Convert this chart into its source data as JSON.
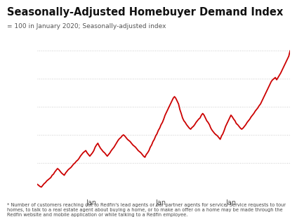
{
  "title": "Seasonally-Adjusted Homebuyer Demand Index",
  "subtitle": "= 100 in January 2020; Seasonally-adjusted index",
  "footnote": "* Number of customers reaching out to Redfin's lead agents or our partner agents for service. Service requests to tour homes, to talk to a real estate agent about buying a home, or to make an offer on a home may be made through the Redfin website and mobile application or while talking to a Redfin employee.",
  "line_color": "#cc0000",
  "background_color": "#ffffff",
  "grid_color": "#cccccc",
  "x_tick_labels": [
    "Jan",
    "Jan",
    "Jan"
  ],
  "values": [
    62,
    60,
    58,
    57,
    60,
    63,
    65,
    68,
    70,
    72,
    74,
    78,
    80,
    84,
    87,
    90,
    88,
    85,
    82,
    80,
    78,
    82,
    85,
    88,
    90,
    92,
    95,
    98,
    100,
    103,
    105,
    108,
    112,
    115,
    118,
    120,
    122,
    118,
    115,
    112,
    115,
    118,
    122,
    128,
    132,
    135,
    130,
    126,
    123,
    120,
    118,
    115,
    112,
    115,
    118,
    122,
    125,
    128,
    132,
    136,
    140,
    143,
    145,
    148,
    150,
    148,
    145,
    142,
    140,
    138,
    135,
    132,
    130,
    128,
    125,
    122,
    120,
    118,
    115,
    112,
    110,
    115,
    118,
    122,
    128,
    132,
    138,
    142,
    148,
    152,
    158,
    162,
    168,
    172,
    178,
    185,
    190,
    195,
    200,
    205,
    210,
    215,
    218,
    215,
    210,
    205,
    195,
    188,
    180,
    175,
    172,
    168,
    165,
    162,
    160,
    163,
    165,
    168,
    172,
    175,
    178,
    180,
    185,
    188,
    185,
    180,
    175,
    172,
    168,
    162,
    158,
    155,
    152,
    150,
    148,
    145,
    142,
    148,
    152,
    158,
    165,
    170,
    175,
    180,
    185,
    182,
    178,
    175,
    170,
    168,
    165,
    162,
    160,
    162,
    165,
    168,
    172,
    175,
    178,
    182,
    185,
    188,
    192,
    195,
    198,
    202,
    205,
    210,
    215,
    220,
    225,
    230,
    235,
    240,
    245,
    248,
    250,
    252,
    248,
    252,
    256,
    260,
    265,
    270,
    275,
    280,
    285,
    290,
    300
  ]
}
